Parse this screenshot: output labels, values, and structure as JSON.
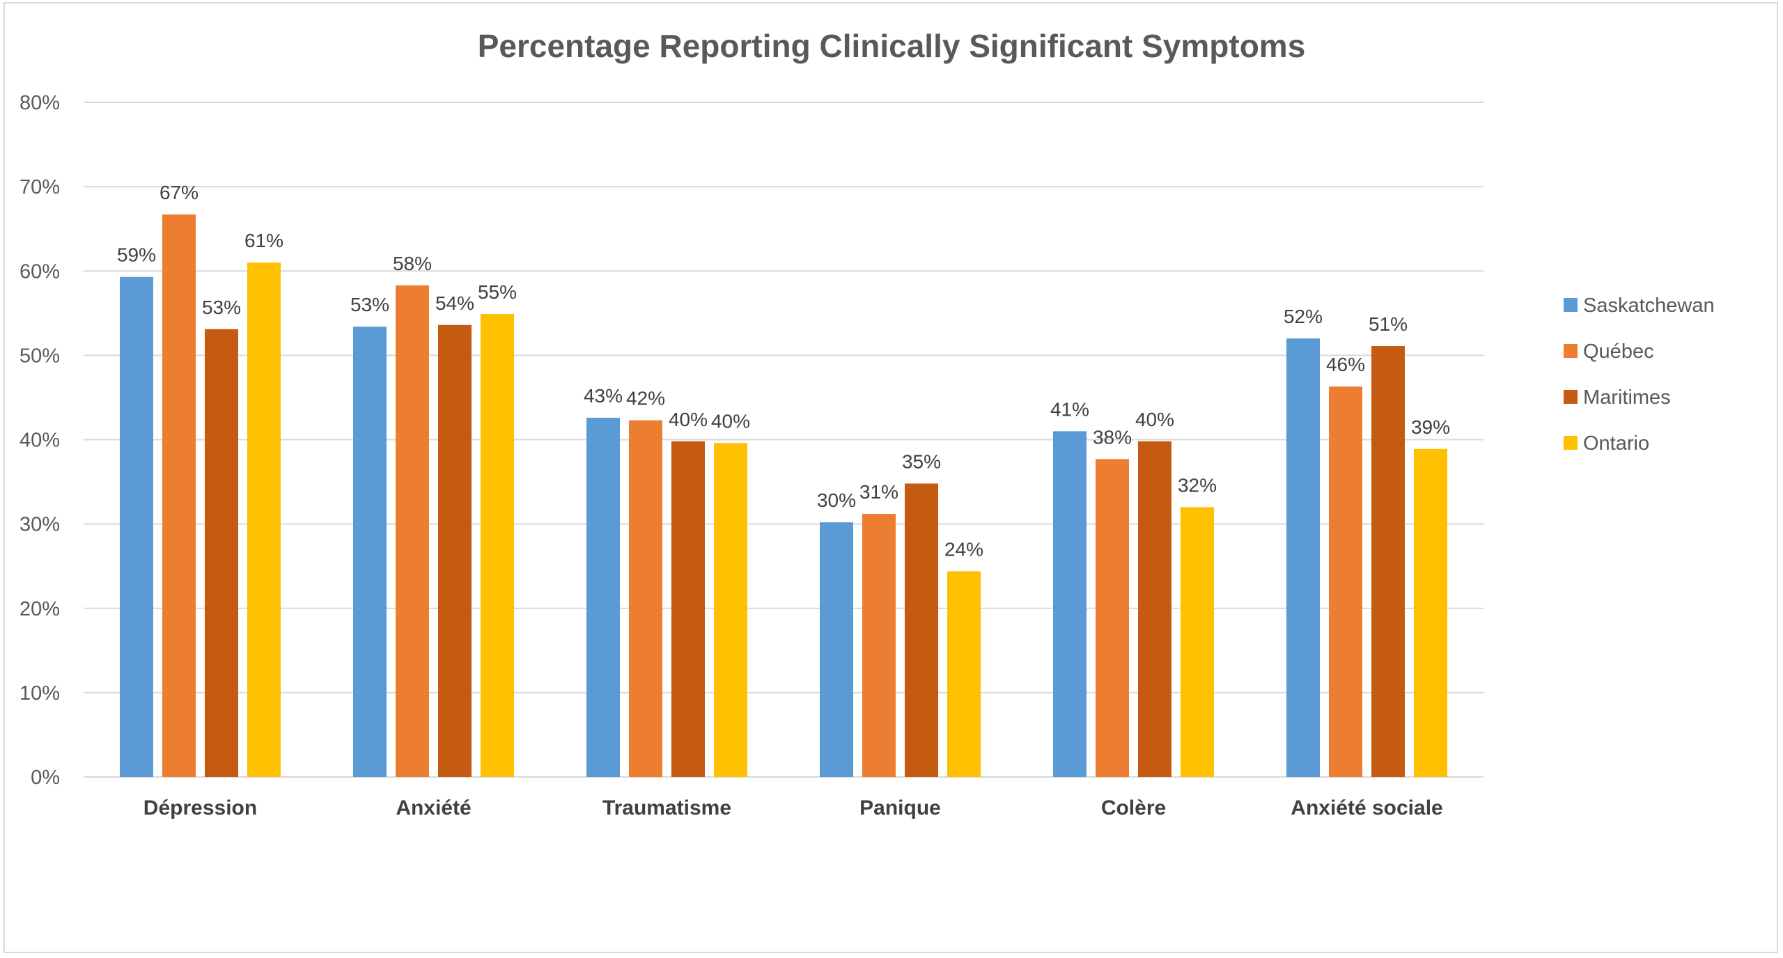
{
  "chart_data": {
    "type": "bar",
    "title": "Percentage Reporting Clinically Significant Symptoms",
    "xlabel": "",
    "ylabel": "",
    "ylim": [
      0,
      80
    ],
    "y_ticks": [
      "0%",
      "10%",
      "20%",
      "30%",
      "40%",
      "50%",
      "60%",
      "70%",
      "80%"
    ],
    "y_tick_values": [
      0,
      10,
      20,
      30,
      40,
      50,
      60,
      70,
      80
    ],
    "grid": true,
    "legend_position": "right",
    "categories": [
      "Dépression",
      "Anxiété",
      "Traumatisme",
      "Panique",
      "Colère",
      "Anxiété sociale"
    ],
    "series": [
      {
        "name": "Saskatchewan",
        "color": "#5B9BD5",
        "values": [
          59.3,
          53.4,
          42.6,
          30.2,
          41.0,
          52.0
        ],
        "labels": [
          "59%",
          "53%",
          "43%",
          "30%",
          "41%",
          "52%"
        ]
      },
      {
        "name": "Québec",
        "color": "#ED7D31",
        "values": [
          66.7,
          58.3,
          42.3,
          31.2,
          37.7,
          46.3
        ],
        "labels": [
          "67%",
          "58%",
          "42%",
          "31%",
          "38%",
          "46%"
        ]
      },
      {
        "name": "Maritimes",
        "color": "#C55A11",
        "values": [
          53.1,
          53.6,
          39.8,
          34.8,
          39.8,
          51.1
        ],
        "labels": [
          "53%",
          "54%",
          "40%",
          "35%",
          "40%",
          "51%"
        ]
      },
      {
        "name": "Ontario",
        "color": "#FFC000",
        "values": [
          61.0,
          54.9,
          39.6,
          24.4,
          32.0,
          38.9
        ],
        "labels": [
          "61%",
          "55%",
          "40%",
          "24%",
          "32%",
          "39%"
        ]
      }
    ]
  },
  "colors": {
    "gridline": "#d9d9d9",
    "title": "#595959",
    "axis_text": "#595959",
    "category_text": "#404040",
    "label_text": "#404040",
    "frame_border": "#d9d9d9"
  }
}
